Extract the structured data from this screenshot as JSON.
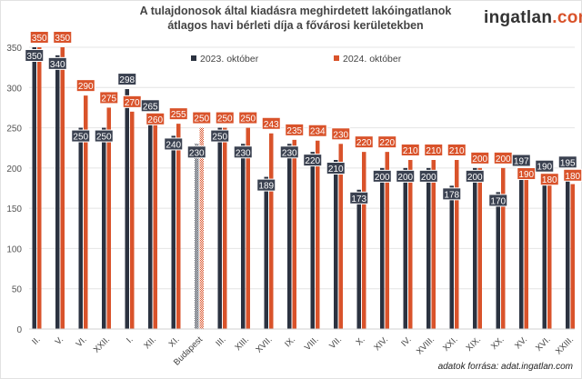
{
  "title_line1": "A tulajdonosok által kiadásra meghirdetett lakóingatlanok",
  "title_line2": "átlagos havi bérleti díja a fővárosi kerületekben",
  "logo": {
    "main": "ingatlan",
    "suffix": ".com"
  },
  "source": "adatok forrása: adat.ingatlan.com",
  "chart_data": {
    "type": "bar",
    "title": "A tulajdonosok által kiadásra meghirdetett lakóingatlanok átlagos havi bérleti díja a fővárosi kerületekben",
    "categories": [
      "II.",
      "V.",
      "VI.",
      "XXII.",
      "I.",
      "XII.",
      "XI.",
      "Budapest",
      "III.",
      "XIII.",
      "XVII.",
      "IX.",
      "VIII.",
      "VII.",
      "X.",
      "XIV.",
      "IV.",
      "XVIII.",
      "XXI.",
      "XIX.",
      "XX.",
      "XV.",
      "XVI.",
      "XXIII."
    ],
    "series": [
      {
        "name": "2023. október",
        "color": "#2b3240",
        "values": [
          350,
          340,
          250,
          250,
          298,
          265,
          240,
          230,
          250,
          230,
          189,
          230,
          220,
          210,
          173,
          200,
          200,
          200,
          178,
          200,
          170,
          197,
          190,
          195
        ]
      },
      {
        "name": "2024. október",
        "color": "#d9532b",
        "values": [
          350,
          350,
          290,
          275,
          270,
          260,
          255,
          250,
          250,
          250,
          243,
          235,
          234,
          230,
          220,
          220,
          210,
          210,
          210,
          200,
          200,
          190,
          180,
          180
        ]
      }
    ],
    "highlight_category": "Budapest",
    "yticks": [
      0,
      50,
      100,
      150,
      200,
      250,
      300,
      350
    ],
    "ylim": [
      0,
      350
    ],
    "grid": true,
    "legend": "top"
  }
}
